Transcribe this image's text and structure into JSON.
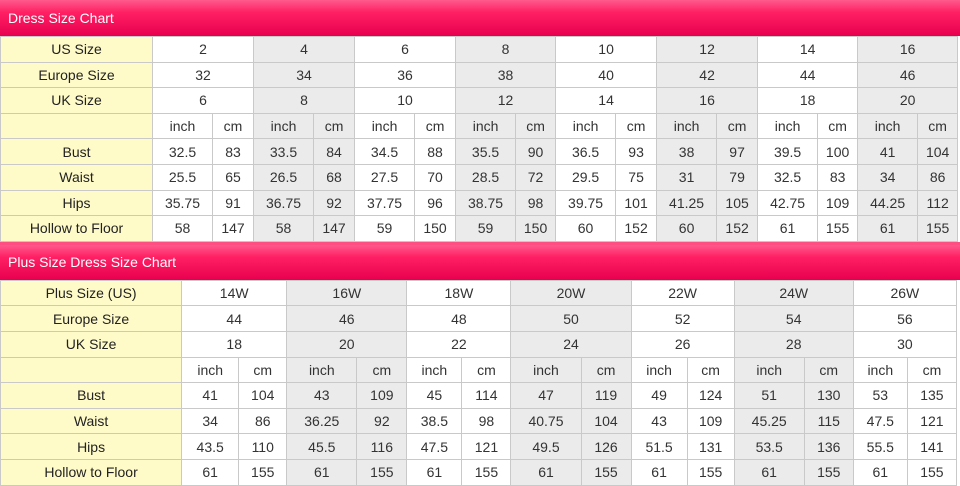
{
  "standard": {
    "title": "Dress Size Chart",
    "size_labels": [
      "US Size",
      "Europe Size",
      "UK Size"
    ],
    "sizes": [
      {
        "us": "2",
        "eu": "32",
        "uk": "6"
      },
      {
        "us": "4",
        "eu": "34",
        "uk": "8"
      },
      {
        "us": "6",
        "eu": "36",
        "uk": "10"
      },
      {
        "us": "8",
        "eu": "38",
        "uk": "12"
      },
      {
        "us": "10",
        "eu": "40",
        "uk": "14"
      },
      {
        "us": "12",
        "eu": "42",
        "uk": "16"
      },
      {
        "us": "14",
        "eu": "44",
        "uk": "18"
      },
      {
        "us": "16",
        "eu": "46",
        "uk": "20"
      }
    ],
    "unit_labels": [
      "inch",
      "cm"
    ],
    "measurements": [
      {
        "label": "Bust",
        "values": [
          [
            "32.5",
            "83"
          ],
          [
            "33.5",
            "84"
          ],
          [
            "34.5",
            "88"
          ],
          [
            "35.5",
            "90"
          ],
          [
            "36.5",
            "93"
          ],
          [
            "38",
            "97"
          ],
          [
            "39.5",
            "100"
          ],
          [
            "41",
            "104"
          ]
        ]
      },
      {
        "label": "Waist",
        "values": [
          [
            "25.5",
            "65"
          ],
          [
            "26.5",
            "68"
          ],
          [
            "27.5",
            "70"
          ],
          [
            "28.5",
            "72"
          ],
          [
            "29.5",
            "75"
          ],
          [
            "31",
            "79"
          ],
          [
            "32.5",
            "83"
          ],
          [
            "34",
            "86"
          ]
        ]
      },
      {
        "label": "Hips",
        "values": [
          [
            "35.75",
            "91"
          ],
          [
            "36.75",
            "92"
          ],
          [
            "37.75",
            "96"
          ],
          [
            "38.75",
            "98"
          ],
          [
            "39.75",
            "101"
          ],
          [
            "41.25",
            "105"
          ],
          [
            "42.75",
            "109"
          ],
          [
            "44.25",
            "112"
          ]
        ]
      },
      {
        "label": "Hollow to Floor",
        "values": [
          [
            "58",
            "147"
          ],
          [
            "58",
            "147"
          ],
          [
            "59",
            "150"
          ],
          [
            "59",
            "150"
          ],
          [
            "60",
            "152"
          ],
          [
            "60",
            "152"
          ],
          [
            "61",
            "155"
          ],
          [
            "61",
            "155"
          ]
        ]
      }
    ]
  },
  "plus": {
    "title": "Plus Size Dress Size Chart",
    "size_labels": [
      "Plus Size (US)",
      "Europe Size",
      "UK Size"
    ],
    "sizes": [
      {
        "us": "14W",
        "eu": "44",
        "uk": "18"
      },
      {
        "us": "16W",
        "eu": "46",
        "uk": "20"
      },
      {
        "us": "18W",
        "eu": "48",
        "uk": "22"
      },
      {
        "us": "20W",
        "eu": "50",
        "uk": "24"
      },
      {
        "us": "22W",
        "eu": "52",
        "uk": "26"
      },
      {
        "us": "24W",
        "eu": "54",
        "uk": "28"
      },
      {
        "us": "26W",
        "eu": "56",
        "uk": "30"
      }
    ],
    "unit_labels": [
      "inch",
      "cm"
    ],
    "measurements": [
      {
        "label": "Bust",
        "values": [
          [
            "41",
            "104"
          ],
          [
            "43",
            "109"
          ],
          [
            "45",
            "114"
          ],
          [
            "47",
            "119"
          ],
          [
            "49",
            "124"
          ],
          [
            "51",
            "130"
          ],
          [
            "53",
            "135"
          ]
        ]
      },
      {
        "label": "Waist",
        "values": [
          [
            "34",
            "86"
          ],
          [
            "36.25",
            "92"
          ],
          [
            "38.5",
            "98"
          ],
          [
            "40.75",
            "104"
          ],
          [
            "43",
            "109"
          ],
          [
            "45.25",
            "115"
          ],
          [
            "47.5",
            "121"
          ]
        ]
      },
      {
        "label": "Hips",
        "values": [
          [
            "43.5",
            "110"
          ],
          [
            "45.5",
            "116"
          ],
          [
            "47.5",
            "121"
          ],
          [
            "49.5",
            "126"
          ],
          [
            "51.5",
            "131"
          ],
          [
            "53.5",
            "136"
          ],
          [
            "55.5",
            "141"
          ]
        ]
      },
      {
        "label": "Hollow to Floor",
        "values": [
          [
            "61",
            "155"
          ],
          [
            "61",
            "155"
          ],
          [
            "61",
            "155"
          ],
          [
            "61",
            "155"
          ],
          [
            "61",
            "155"
          ],
          [
            "61",
            "155"
          ],
          [
            "61",
            "155"
          ]
        ]
      }
    ]
  }
}
